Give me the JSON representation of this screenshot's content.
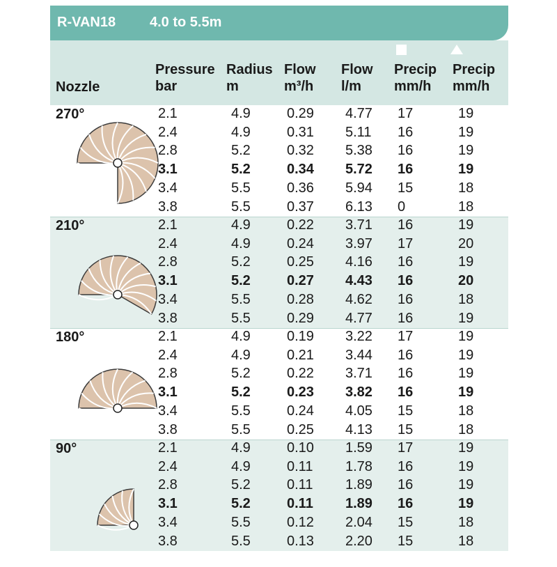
{
  "title": {
    "model": "R-VAN18",
    "range": "4.0 to 5.5m"
  },
  "columns": {
    "nozzle": "Nozzle",
    "pressure": [
      "Pressure",
      "bar"
    ],
    "radius": [
      "Radius",
      "m"
    ],
    "flow_m3h": [
      "Flow",
      "m³/h"
    ],
    "flow_lm": [
      "Flow",
      "l/m"
    ],
    "precip_square": [
      "Precip",
      "mm/h"
    ],
    "precip_triangle": [
      "Precip",
      "mm/h"
    ]
  },
  "icons": {
    "precip_square": "square-icon",
    "precip_triangle": "triangle-icon"
  },
  "groups": [
    {
      "nozzle": "270°",
      "arc_degrees": 270,
      "rows": [
        [
          "2.1",
          "4.9",
          "0.29",
          "4.77",
          "17",
          "19"
        ],
        [
          "2.4",
          "4.9",
          "0.31",
          "5.11",
          "16",
          "19"
        ],
        [
          "2.8",
          "5.2",
          "0.32",
          "5.38",
          "16",
          "19"
        ],
        [
          "3.1",
          "5.2",
          "0.34",
          "5.72",
          "16",
          "19"
        ],
        [
          "3.4",
          "5.5",
          "0.36",
          "5.94",
          "15",
          "18"
        ],
        [
          "3.8",
          "5.5",
          "0.37",
          "6.13",
          "0",
          "18"
        ]
      ]
    },
    {
      "nozzle": "210°",
      "arc_degrees": 210,
      "rows": [
        [
          "2.1",
          "4.9",
          "0.22",
          "3.71",
          "16",
          "19"
        ],
        [
          "2.4",
          "4.9",
          "0.24",
          "3.97",
          "17",
          "20"
        ],
        [
          "2.8",
          "5.2",
          "0.25",
          "4.16",
          "16",
          "19"
        ],
        [
          "3.1",
          "5.2",
          "0.27",
          "4.43",
          "16",
          "20"
        ],
        [
          "3.4",
          "5.5",
          "0.28",
          "4.62",
          "16",
          "18"
        ],
        [
          "3.8",
          "5.5",
          "0.29",
          "4.77",
          "16",
          "19"
        ]
      ]
    },
    {
      "nozzle": "180°",
      "arc_degrees": 180,
      "rows": [
        [
          "2.1",
          "4.9",
          "0.19",
          "3.22",
          "17",
          "19"
        ],
        [
          "2.4",
          "4.9",
          "0.21",
          "3.44",
          "16",
          "19"
        ],
        [
          "2.8",
          "5.2",
          "0.22",
          "3.71",
          "16",
          "19"
        ],
        [
          "3.1",
          "5.2",
          "0.23",
          "3.82",
          "16",
          "19"
        ],
        [
          "3.4",
          "5.5",
          "0.24",
          "4.05",
          "15",
          "18"
        ],
        [
          "3.8",
          "5.5",
          "0.25",
          "4.13",
          "15",
          "18"
        ]
      ]
    },
    {
      "nozzle": "90°",
      "arc_degrees": 90,
      "rows": [
        [
          "2.1",
          "4.9",
          "0.10",
          "1.59",
          "17",
          "19"
        ],
        [
          "2.4",
          "4.9",
          "0.11",
          "1.78",
          "16",
          "19"
        ],
        [
          "2.8",
          "5.2",
          "0.11",
          "1.89",
          "16",
          "19"
        ],
        [
          "3.1",
          "5.2",
          "0.11",
          "1.89",
          "16",
          "19"
        ],
        [
          "3.4",
          "5.5",
          "0.12",
          "2.04",
          "15",
          "18"
        ],
        [
          "3.8",
          "5.5",
          "0.13",
          "2.20",
          "15",
          "18"
        ]
      ]
    }
  ],
  "highlight_pressure": "3.1",
  "colors": {
    "title_bar": "#6fb8ae",
    "header_bg": "#d4e7e3",
    "shaded_group": "#e4efec",
    "fan_fill": "#dcc3ac",
    "fan_stroke": "#3a3a3a"
  }
}
